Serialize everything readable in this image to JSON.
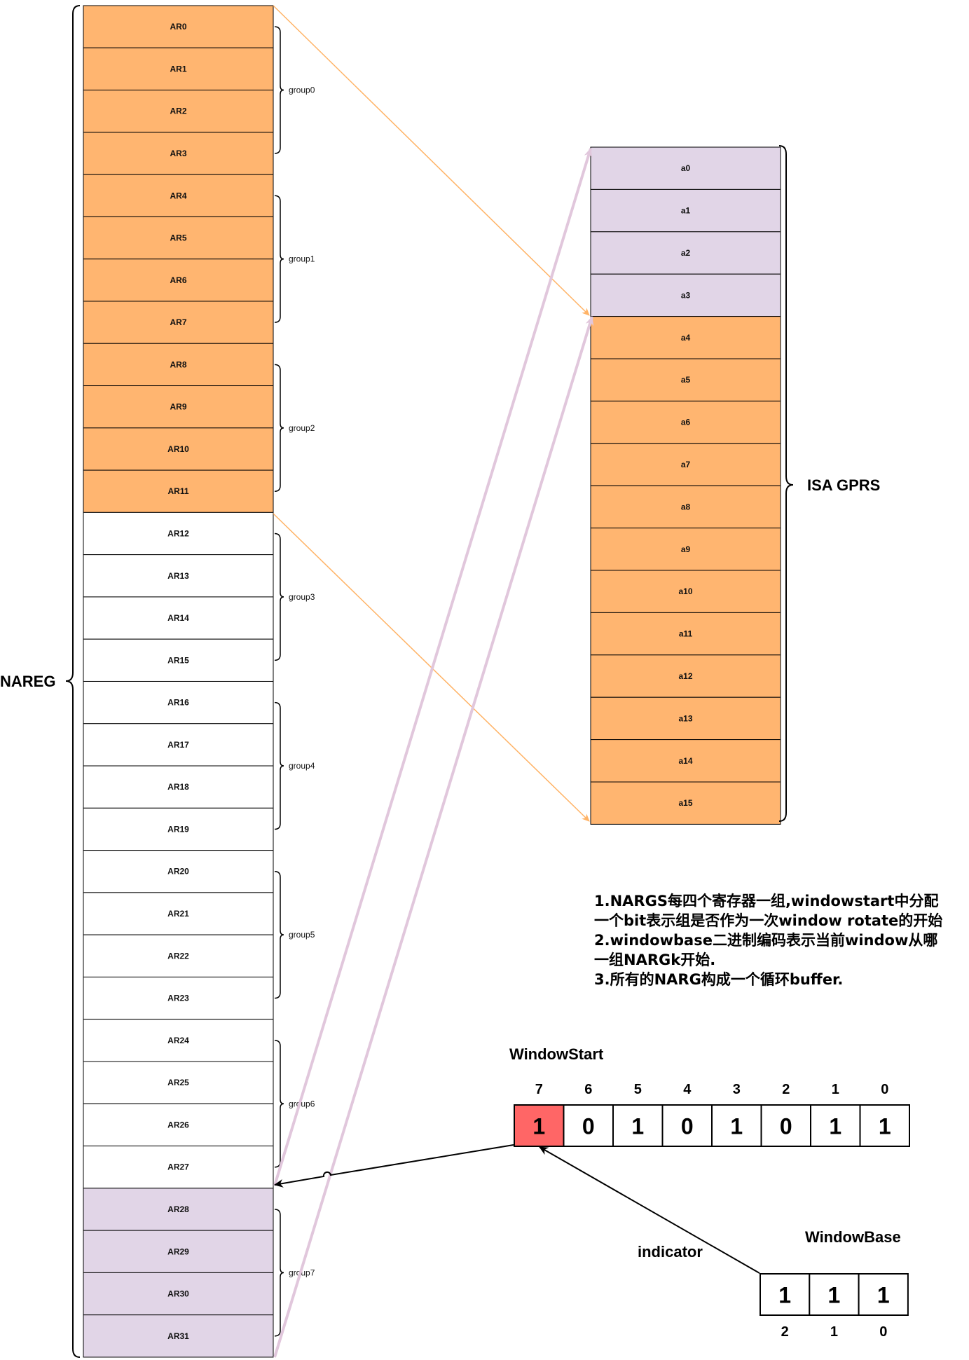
{
  "nareg": {
    "label": "NAREG",
    "registers": [
      "AR0",
      "AR1",
      "AR2",
      "AR3",
      "AR4",
      "AR5",
      "AR6",
      "AR7",
      "AR8",
      "AR9",
      "AR10",
      "AR11",
      "AR12",
      "AR13",
      "AR14",
      "AR15",
      "AR16",
      "AR17",
      "AR18",
      "AR19",
      "AR20",
      "AR21",
      "AR22",
      "AR23",
      "AR24",
      "AR25",
      "AR26",
      "AR27",
      "AR28",
      "AR29",
      "AR30",
      "AR31"
    ],
    "fills": [
      "#FFB570",
      "#FFB570",
      "#FFB570",
      "#FFB570",
      "#FFB570",
      "#FFB570",
      "#FFB570",
      "#FFB570",
      "#FFB570",
      "#FFB570",
      "#FFB570",
      "#FFB570",
      "#FFFFFF",
      "#FFFFFF",
      "#FFFFFF",
      "#FFFFFF",
      "#FFFFFF",
      "#FFFFFF",
      "#FFFFFF",
      "#FFFFFF",
      "#FFFFFF",
      "#FFFFFF",
      "#FFFFFF",
      "#FFFFFF",
      "#FFFFFF",
      "#FFFFFF",
      "#FFFFFF",
      "#FFFFFF",
      "#E1D5E7",
      "#E1D5E7",
      "#E1D5E7",
      "#E1D5E7"
    ],
    "groups": [
      "group0",
      "group1",
      "group2",
      "group3",
      "group4",
      "group5",
      "group6",
      "group7"
    ]
  },
  "gprs": {
    "label": "ISA GPRS",
    "registers": [
      "a0",
      "a1",
      "a2",
      "a3",
      "a4",
      "a5",
      "a6",
      "a7",
      "a8",
      "a9",
      "a10",
      "a11",
      "a12",
      "a13",
      "a14",
      "a15"
    ],
    "fills": [
      "#E1D5E7",
      "#E1D5E7",
      "#E1D5E7",
      "#E1D5E7",
      "#FFB570",
      "#FFB570",
      "#FFB570",
      "#FFB570",
      "#FFB570",
      "#FFB570",
      "#FFB570",
      "#FFB570",
      "#FFB570",
      "#FFB570",
      "#FFB570",
      "#FFB570"
    ]
  },
  "notes": [
    "1.NARGS每四个寄存器一组,windowstart中分配",
    "一个bit表示组是否作为一次window rotate的开始",
    "2.windowbase二进制编码表示当前window从哪",
    "一组NARGk开始.",
    "3.所有的NARG构成一个循环buffer."
  ],
  "window_start": {
    "label": "WindowStart",
    "bit_numbers": [
      "7",
      "6",
      "5",
      "4",
      "3",
      "2",
      "1",
      "0"
    ],
    "values": [
      "1",
      "0",
      "1",
      "0",
      "1",
      "0",
      "1",
      "1"
    ],
    "highlight_color": "#FF6666"
  },
  "window_base": {
    "label": "WindowBase",
    "bit_numbers": [
      "2",
      "1",
      "0"
    ],
    "values": [
      "1",
      "1",
      "1"
    ]
  },
  "indicator_label": "indicator",
  "colors": {
    "orange": "#FFB570",
    "purple": "#E1D5E7",
    "orange_arrow": "#FFB366",
    "purple_arrow": "#E1C7DC"
  }
}
